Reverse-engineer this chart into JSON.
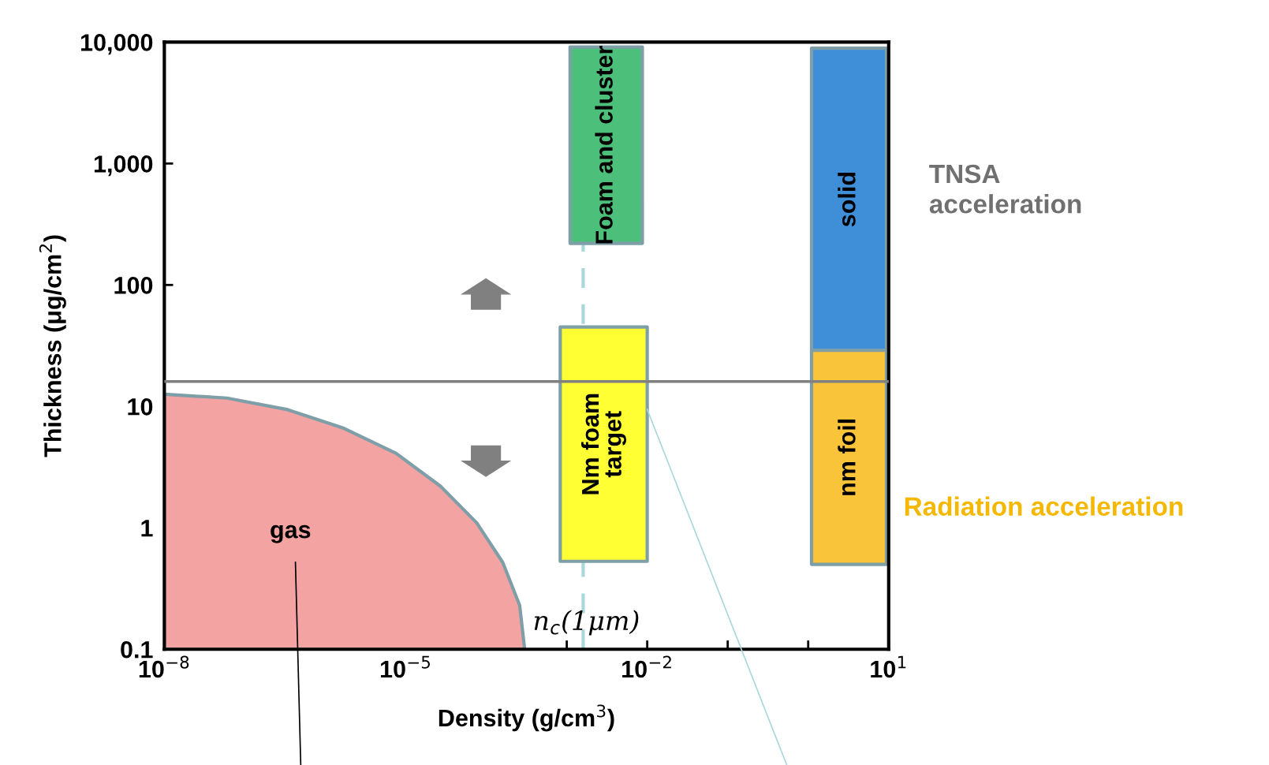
{
  "chart_data": {
    "type": "area",
    "xlabel": "Density (g/cm$^{3}$)",
    "ylabel": "Thickness (μg/cm$^{2}$)",
    "log": "xy",
    "xlim": [
      1e-08,
      10
    ],
    "ylim": [
      0.1,
      10000
    ],
    "xticks": [
      {
        "value": 1e-08,
        "label": "10$^{−8}$"
      },
      {
        "value": 1e-07,
        "label": null
      },
      {
        "value": 1e-06,
        "label": null
      },
      {
        "value": 1e-05,
        "label": "10$^{−5}$"
      },
      {
        "value": 0.0001,
        "label": null
      },
      {
        "value": 0.001,
        "label": null
      },
      {
        "value": 0.01,
        "label": "10$^{−2}$"
      },
      {
        "value": 0.1,
        "label": null
      },
      {
        "value": 1,
        "label": null
      },
      {
        "value": 10,
        "label": "10$^{1}$"
      }
    ],
    "yticks": [
      0.1,
      1,
      10,
      {
        "value": 100,
        "label": "100"
      },
      {
        "value": 1000,
        "label": "1,000"
      },
      {
        "value": 10000,
        "label": "10,000"
      }
    ],
    "series": [
      {
        "name": "gas",
        "color": "#f4a3a3",
        "x": [
          1e-08,
          1e-08,
          6e-08,
          3.4e-07,
          1.7e-06,
          7.6e-06,
          2.7e-05,
          7.6e-05,
          0.00016,
          0.00026,
          0.0003
        ],
        "values": [
          0.1,
          12.6,
          11.7,
          9.4,
          6.6,
          4.1,
          2.2,
          1.1,
          0.52,
          0.23,
          0.1
        ]
      },
      {
        "name": "Foam and cluster",
        "color": "#4cc07a",
        "x": [
          0.0011,
          0.0011,
          0.0087,
          0.0087
        ],
        "values": [
          220,
          9100,
          9100,
          220
        ]
      },
      {
        "name": "Nm foam\ntarget",
        "color": "#ffff33",
        "x": [
          0.00083,
          0.00083,
          0.01,
          0.01
        ],
        "values": [
          0.53,
          45,
          45,
          0.53
        ]
      },
      {
        "name": "solid",
        "color": "#3f8fd8",
        "x": [
          1.1,
          1.1,
          9.4,
          9.4
        ],
        "values": [
          29,
          8900,
          8900,
          29
        ]
      },
      {
        "name": "nm foil",
        "color": "#f9c33a",
        "x": [
          1.1,
          1.1,
          9.4,
          9.4
        ],
        "values": [
          0.5,
          29,
          29,
          0.5
        ]
      }
    ],
    "ref_lines": [
      {
        "axis": "y",
        "value": 16,
        "color": "#808080",
        "line_style": "solid"
      },
      {
        "axis": "x",
        "value": 0.0016,
        "label": "n$_{c}$(1μm)",
        "color": "#a8d8dc",
        "line_style": "dashed"
      }
    ],
    "annotations": [
      "TNSA\nacceleration",
      "Radiation acceleration"
    ]
  }
}
